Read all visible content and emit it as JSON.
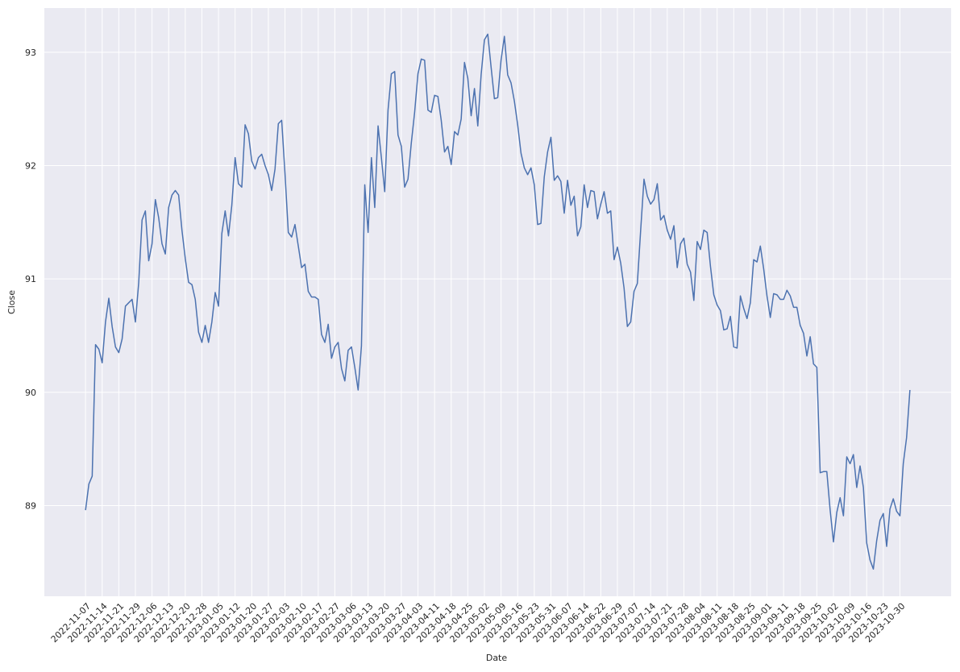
{
  "chart_data": {
    "type": "line",
    "x_label": "Date",
    "y_label": "Close",
    "categories": [
      "2022-11-07",
      null,
      null,
      null,
      null,
      "2022-11-14",
      null,
      null,
      null,
      null,
      "2022-11-21",
      null,
      null,
      null,
      null,
      "2022-11-29",
      null,
      null,
      null,
      null,
      "2022-12-06",
      null,
      null,
      null,
      null,
      "2022-12-13",
      null,
      null,
      null,
      null,
      "2022-12-20",
      null,
      null,
      null,
      null,
      "2022-12-28",
      null,
      null,
      null,
      null,
      "2023-01-05",
      null,
      null,
      null,
      null,
      "2023-01-12",
      null,
      null,
      null,
      null,
      "2023-01-20",
      null,
      null,
      null,
      null,
      "2023-01-27",
      null,
      null,
      null,
      null,
      "2023-02-03",
      null,
      null,
      null,
      null,
      "2023-02-10",
      null,
      null,
      null,
      null,
      "2023-02-17",
      null,
      null,
      null,
      null,
      "2023-02-27",
      null,
      null,
      null,
      null,
      "2023-03-06",
      null,
      null,
      null,
      null,
      "2023-03-13",
      null,
      null,
      null,
      null,
      "2023-03-20",
      null,
      null,
      null,
      null,
      "2023-03-27",
      null,
      null,
      null,
      null,
      "2023-04-03",
      null,
      null,
      null,
      null,
      "2023-04-11",
      null,
      null,
      null,
      null,
      "2023-04-18",
      null,
      null,
      null,
      null,
      "2023-04-25",
      null,
      null,
      null,
      null,
      "2023-05-02",
      null,
      null,
      null,
      null,
      "2023-05-09",
      null,
      null,
      null,
      null,
      "2023-05-16",
      null,
      null,
      null,
      null,
      "2023-05-23",
      null,
      null,
      null,
      null,
      "2023-05-31",
      null,
      null,
      null,
      null,
      "2023-06-07",
      null,
      null,
      null,
      null,
      "2023-06-14",
      null,
      null,
      null,
      null,
      "2023-06-22",
      null,
      null,
      null,
      null,
      "2023-06-29",
      null,
      null,
      null,
      null,
      "2023-07-07",
      null,
      null,
      null,
      null,
      "2023-07-14",
      null,
      null,
      null,
      null,
      "2023-07-21",
      null,
      null,
      null,
      null,
      "2023-07-28",
      null,
      null,
      null,
      null,
      "2023-08-04",
      null,
      null,
      null,
      null,
      "2023-08-11",
      null,
      null,
      null,
      null,
      "2023-08-18",
      null,
      null,
      null,
      null,
      "2023-08-25",
      null,
      null,
      null,
      null,
      "2023-09-01",
      null,
      null,
      null,
      null,
      "2023-09-11",
      null,
      null,
      null,
      null,
      "2023-09-18",
      null,
      null,
      null,
      null,
      "2023-09-25",
      null,
      null,
      null,
      null,
      "2023-10-02",
      null,
      null,
      null,
      null,
      "2023-10-09",
      null,
      null,
      null,
      null,
      "2023-10-16",
      null,
      null,
      null,
      null,
      "2023-10-23",
      null,
      null,
      null,
      null,
      "2023-10-30",
      null,
      null,
      null
    ],
    "series": [
      {
        "color": "#4c72b0",
        "values": [
          88.96,
          89.19,
          89.26,
          90.42,
          90.38,
          90.26,
          90.62,
          90.83,
          90.58,
          90.4,
          90.35,
          90.47,
          90.76,
          90.79,
          90.82,
          90.62,
          90.97,
          91.52,
          91.6,
          91.16,
          91.31,
          91.7,
          91.54,
          91.31,
          91.22,
          91.63,
          91.74,
          91.78,
          91.74,
          91.43,
          91.18,
          90.97,
          90.95,
          90.82,
          90.53,
          90.44,
          90.59,
          90.44,
          90.62,
          90.88,
          90.76,
          91.4,
          91.6,
          91.38,
          91.65,
          92.07,
          91.84,
          91.81,
          92.36,
          92.28,
          92.04,
          91.97,
          92.07,
          92.1,
          92.0,
          91.92,
          91.78,
          91.97,
          92.37,
          92.4,
          91.93,
          91.41,
          91.37,
          91.48,
          91.29,
          91.1,
          91.13,
          90.89,
          90.84,
          90.84,
          90.82,
          90.51,
          90.44,
          90.6,
          90.3,
          90.4,
          90.44,
          90.21,
          90.1,
          90.37,
          90.4,
          90.22,
          90.02,
          90.41,
          91.83,
          91.41,
          92.07,
          91.63,
          92.35,
          92.07,
          91.77,
          92.49,
          92.81,
          92.83,
          92.27,
          92.17,
          91.81,
          91.88,
          92.2,
          92.47,
          92.81,
          92.94,
          92.93,
          92.49,
          92.47,
          92.62,
          92.61,
          92.4,
          92.12,
          92.17,
          92.01,
          92.3,
          92.27,
          92.41,
          92.91,
          92.77,
          92.44,
          92.68,
          92.35,
          92.8,
          93.11,
          93.16,
          92.87,
          92.59,
          92.6,
          92.93,
          93.14,
          92.8,
          92.73,
          92.57,
          92.36,
          92.11,
          91.98,
          91.92,
          91.98,
          91.83,
          91.48,
          91.49,
          91.9,
          92.12,
          92.25,
          91.87,
          91.91,
          91.86,
          91.58,
          91.87,
          91.65,
          91.73,
          91.38,
          91.46,
          91.83,
          91.63,
          91.78,
          91.77,
          91.53,
          91.66,
          91.77,
          91.58,
          91.6,
          91.17,
          91.28,
          91.14,
          90.92,
          90.58,
          90.62,
          90.89,
          90.96,
          91.43,
          91.88,
          91.73,
          91.66,
          91.7,
          91.84,
          91.52,
          91.56,
          91.43,
          91.35,
          91.47,
          91.1,
          91.31,
          91.36,
          91.13,
          91.06,
          90.81,
          91.33,
          91.26,
          91.43,
          91.41,
          91.11,
          90.86,
          90.77,
          90.72,
          90.55,
          90.56,
          90.67,
          90.4,
          90.39,
          90.85,
          90.74,
          90.65,
          90.79,
          91.17,
          91.15,
          91.29,
          91.09,
          90.85,
          90.66,
          90.87,
          90.86,
          90.82,
          90.82,
          90.9,
          90.85,
          90.75,
          90.75,
          90.59,
          90.52,
          90.32,
          90.49,
          90.25,
          90.22,
          89.29,
          89.3,
          89.3,
          88.96,
          88.68,
          88.94,
          89.07,
          88.91,
          89.43,
          89.37,
          89.45,
          89.16,
          89.35,
          89.16,
          88.67,
          88.52,
          88.44,
          88.69,
          88.87,
          88.93,
          88.64,
          88.97,
          89.06,
          88.95,
          88.91,
          89.37,
          89.6,
          90.02
        ]
      }
    ],
    "ylim": [
      88.2,
      93.39
    ],
    "yticks": [
      89,
      90,
      91,
      92,
      93
    ],
    "grid": true
  }
}
